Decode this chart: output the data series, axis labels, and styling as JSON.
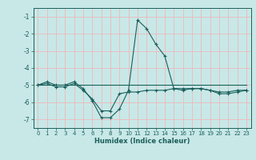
{
  "xlabel": "Humidex (Indice chaleur)",
  "ylabel": "",
  "background_color": "#c8e8e8",
  "grid_color": "#f0b8b8",
  "line_color": "#1a5f5a",
  "xlim": [
    -0.5,
    23.5
  ],
  "ylim": [
    -7.5,
    -0.5
  ],
  "yticks": [
    -7,
    -6,
    -5,
    -4,
    -3,
    -2,
    -1
  ],
  "xticks": [
    0,
    1,
    2,
    3,
    4,
    5,
    6,
    7,
    8,
    9,
    10,
    11,
    12,
    13,
    14,
    15,
    16,
    17,
    18,
    19,
    20,
    21,
    22,
    23
  ],
  "series1_x": [
    0,
    1,
    2,
    3,
    4,
    5,
    6,
    7,
    8,
    9,
    10,
    11,
    12,
    13,
    14,
    15,
    16,
    17,
    18,
    19,
    20,
    21,
    22,
    23
  ],
  "series1_y": [
    -5.0,
    -4.8,
    -5.0,
    -5.0,
    -4.8,
    -5.2,
    -5.9,
    -6.9,
    -6.9,
    -6.4,
    -5.3,
    -1.2,
    -1.7,
    -2.6,
    -3.3,
    -5.2,
    -5.3,
    -5.2,
    -5.2,
    -5.3,
    -5.4,
    -5.4,
    -5.3,
    -5.3
  ],
  "series2_x": [
    0,
    1,
    2,
    3,
    4,
    5,
    6,
    7,
    8,
    9,
    10,
    11,
    12,
    13,
    14,
    15,
    16,
    17,
    18,
    19,
    20,
    21,
    22,
    23
  ],
  "series2_y": [
    -5.0,
    -5.0,
    -5.0,
    -5.0,
    -5.0,
    -5.0,
    -5.0,
    -5.0,
    -5.0,
    -5.0,
    -5.0,
    -5.0,
    -5.0,
    -5.0,
    -5.0,
    -5.0,
    -5.0,
    -5.0,
    -5.0,
    -5.0,
    -5.0,
    -5.0,
    -5.0,
    -5.0
  ],
  "series3_x": [
    0,
    1,
    2,
    3,
    4,
    5,
    6,
    7,
    8,
    9,
    10,
    11,
    12,
    13,
    14,
    15,
    16,
    17,
    18,
    19,
    20,
    21,
    22,
    23
  ],
  "series3_y": [
    -5.0,
    -4.9,
    -5.1,
    -5.1,
    -4.9,
    -5.3,
    -5.8,
    -6.5,
    -6.5,
    -5.5,
    -5.4,
    -5.4,
    -5.3,
    -5.3,
    -5.3,
    -5.2,
    -5.2,
    -5.2,
    -5.2,
    -5.3,
    -5.5,
    -5.5,
    -5.4,
    -5.3
  ],
  "tick_fontsize": 5.0,
  "xlabel_fontsize": 6.0,
  "xlabel_fontweight": "bold"
}
